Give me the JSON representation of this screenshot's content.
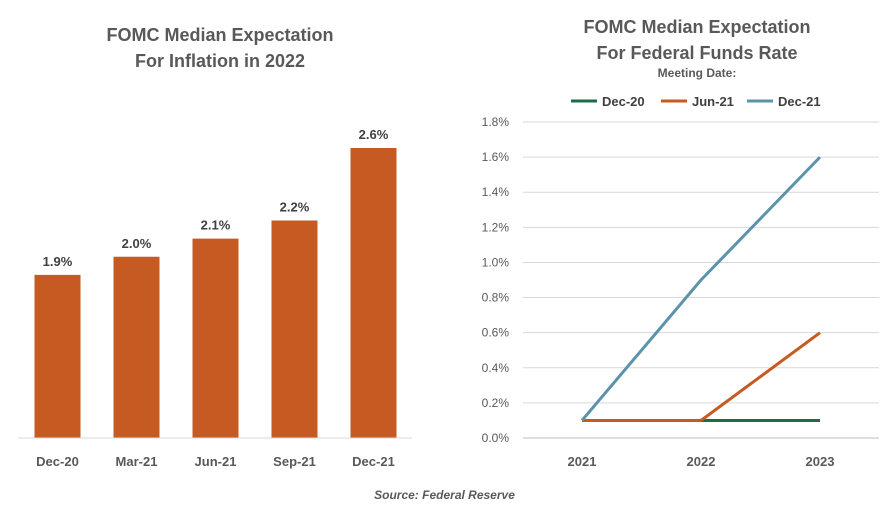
{
  "chart_data": [
    {
      "type": "bar",
      "title_line1": "FOMC Median Expectation",
      "title_line2": "For Inflation in 2022",
      "categories": [
        "Dec-20",
        "Mar-21",
        "Jun-21",
        "Sep-21",
        "Dec-21"
      ],
      "values": [
        1.9,
        2.0,
        2.1,
        2.2,
        2.6
      ],
      "data_labels": [
        "1.9%",
        "2.0%",
        "2.1%",
        "2.2%",
        "2.6%"
      ],
      "ylim": [
        1.0,
        2.8
      ],
      "color": "#c55a22",
      "grid": false,
      "y_axis_visible": false
    },
    {
      "type": "line",
      "title_line1": "FOMC Median Expectation",
      "title_line2": "For Federal Funds Rate",
      "legend_title": "Meeting Date:",
      "legend_position": "top",
      "x": [
        "2021",
        "2022",
        "2023"
      ],
      "series": [
        {
          "name": "Dec-20",
          "values": [
            0.1,
            0.1,
            0.1
          ],
          "color": "#1e6b48"
        },
        {
          "name": "Jun-21",
          "values": [
            0.1,
            0.1,
            0.6
          ],
          "color": "#c55a22"
        },
        {
          "name": "Dec-21",
          "values": [
            0.1,
            0.9,
            1.6
          ],
          "color": "#5b93aa"
        }
      ],
      "ylim": [
        0.0,
        1.8
      ],
      "yticks": [
        "0.0%",
        "0.2%",
        "0.4%",
        "0.6%",
        "0.8%",
        "1.0%",
        "1.2%",
        "1.4%",
        "1.6%",
        "1.8%"
      ],
      "grid": true
    }
  ],
  "source": "Source: Federal Reserve"
}
